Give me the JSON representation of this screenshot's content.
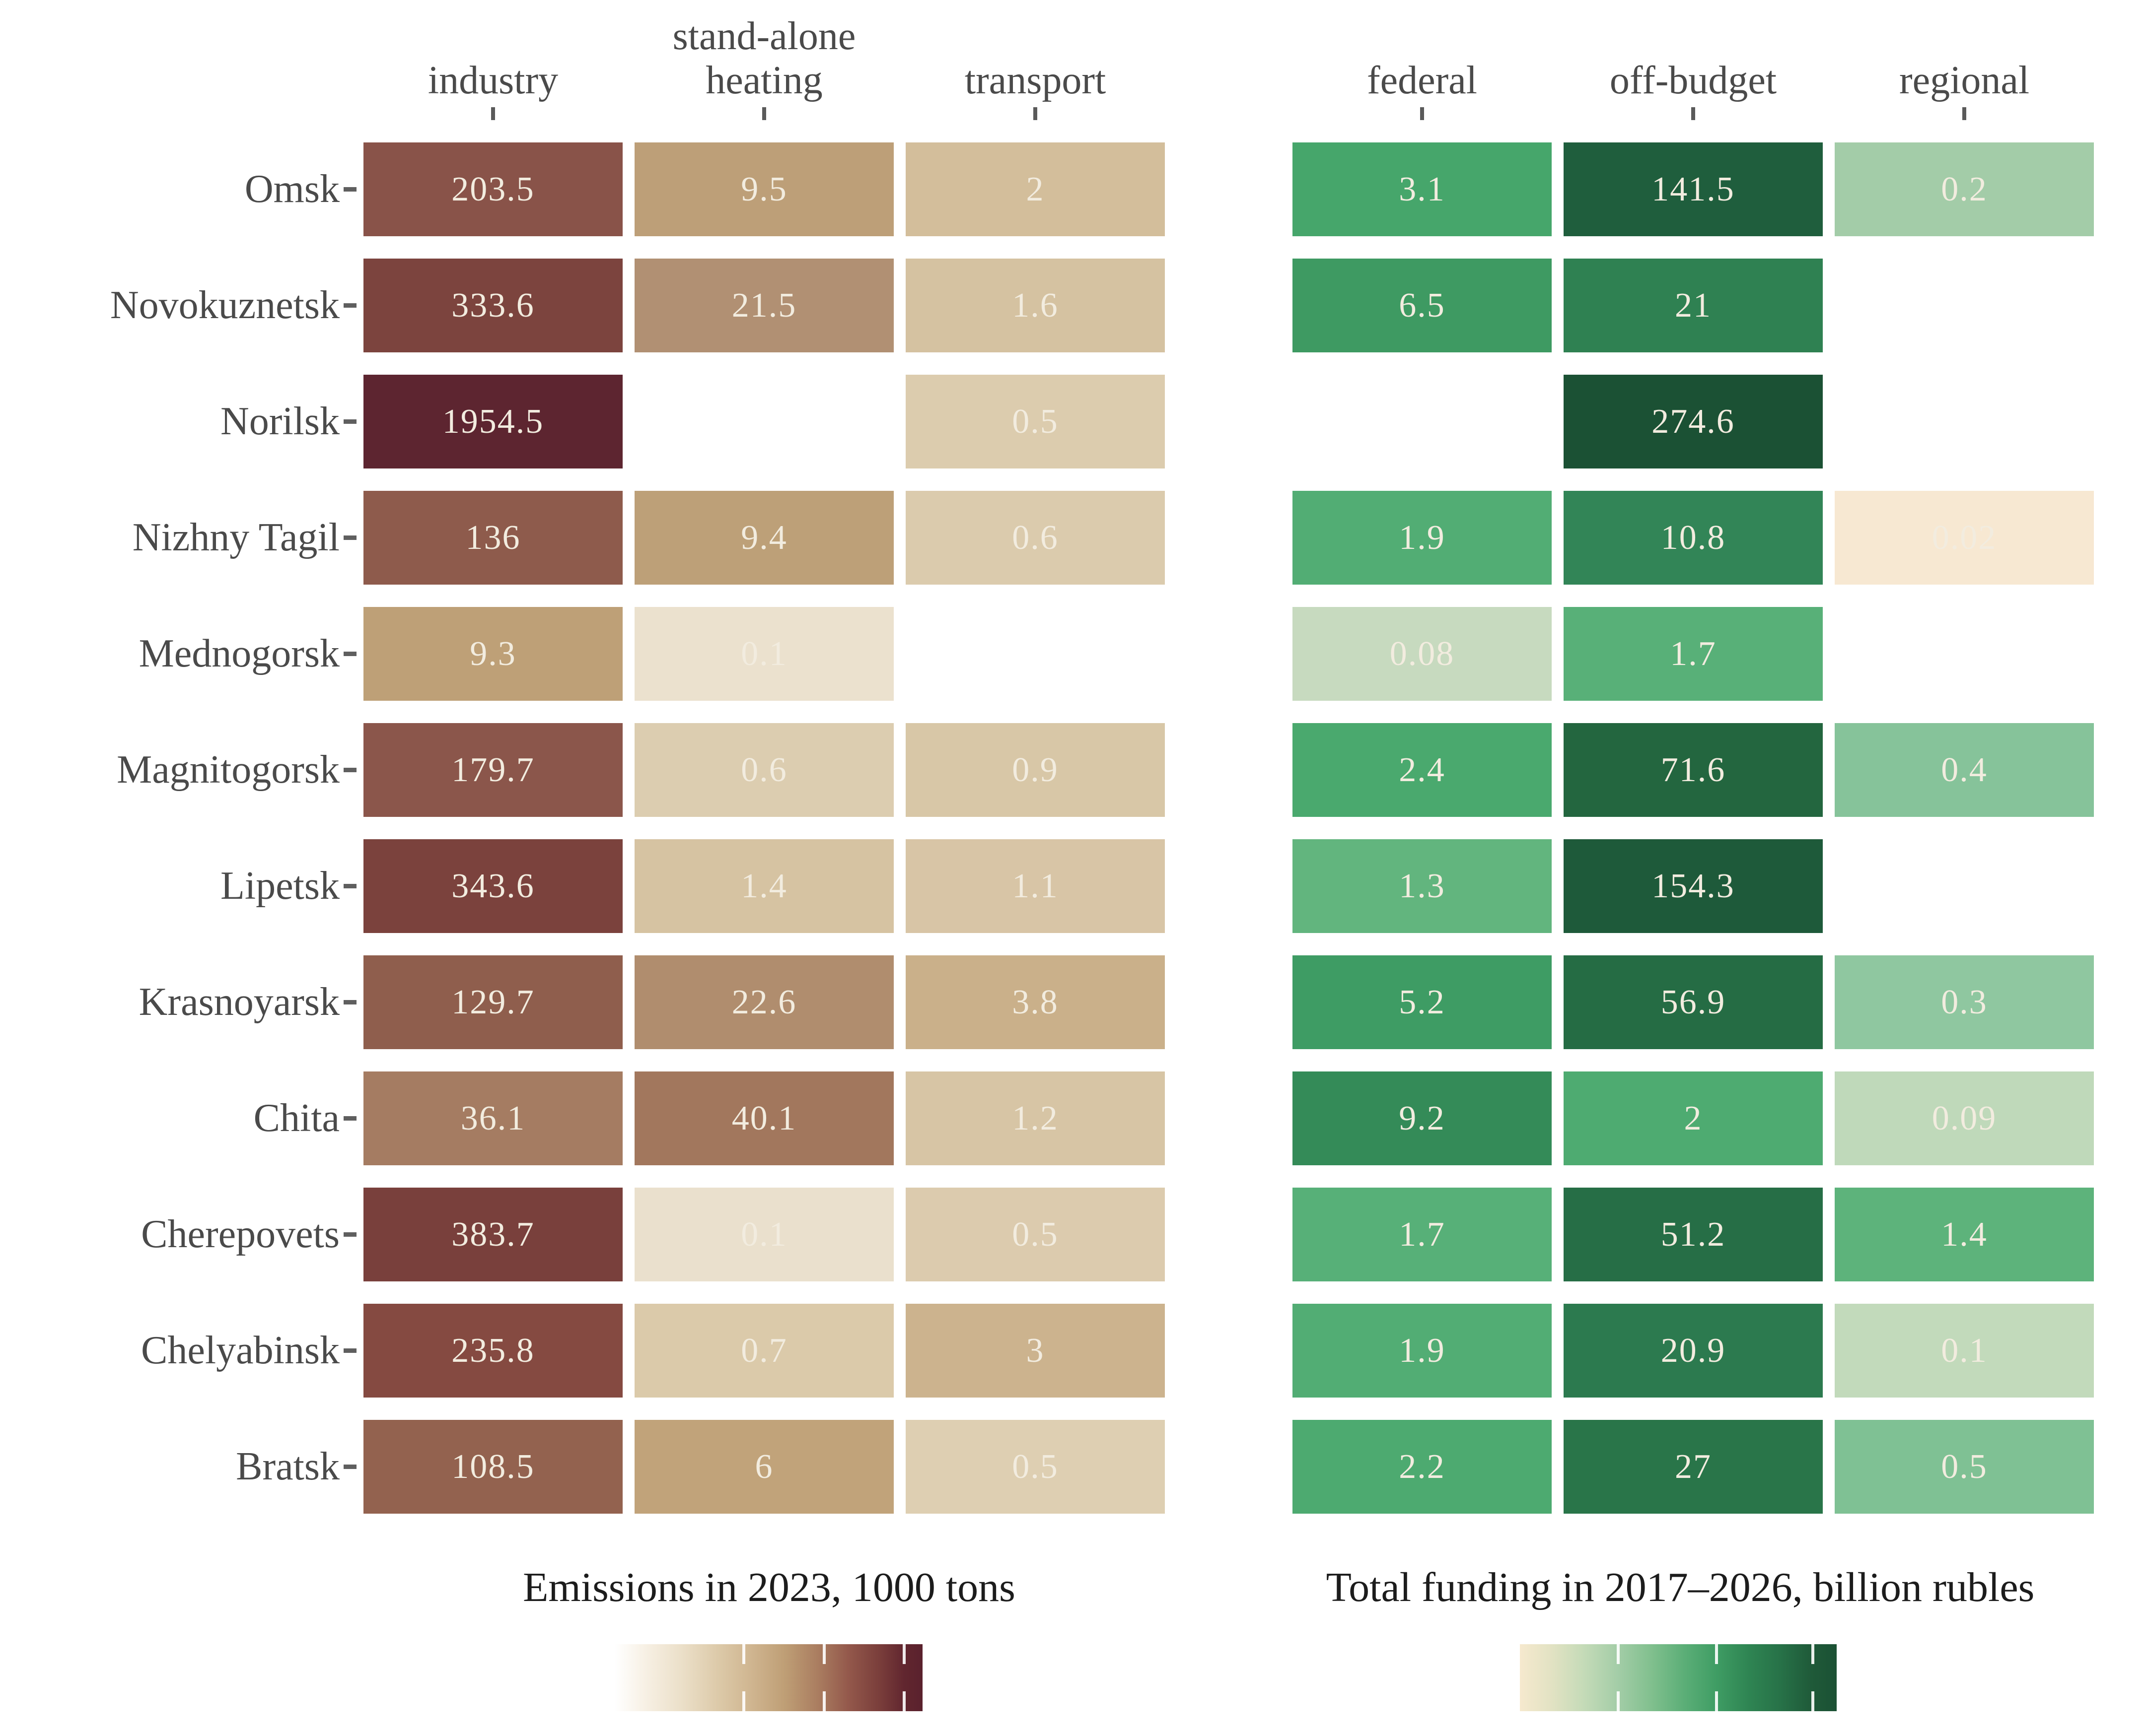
{
  "columns": {
    "emissions": [
      "industry",
      "stand-alone\nheating",
      "transport"
    ],
    "funding": [
      "federal",
      "off-budget",
      "regional"
    ]
  },
  "rows": [
    {
      "label": "Omsk",
      "emissions": [
        {
          "v": "203.5",
          "c": "#895349"
        },
        {
          "v": "9.5",
          "c": "#BD9F78"
        },
        {
          "v": "2",
          "c": "#D3BE9B"
        }
      ],
      "funding": [
        {
          "v": "3.1",
          "c": "#46A66B"
        },
        {
          "v": "141.5",
          "c": "#1F5E3D"
        },
        {
          "v": "0.2",
          "c": "#A3CCA8"
        }
      ]
    },
    {
      "label": "Novokuznetsk",
      "emissions": [
        {
          "v": "333.6",
          "c": "#7C443E"
        },
        {
          "v": "21.5",
          "c": "#B19073"
        },
        {
          "v": "1.6",
          "c": "#D5C2A1"
        }
      ],
      "funding": [
        {
          "v": "6.5",
          "c": "#3E9A62"
        },
        {
          "v": "21",
          "c": "#2F8152"
        },
        null
      ]
    },
    {
      "label": "Norilsk",
      "emissions": [
        {
          "v": "1954.5",
          "c": "#5D2530"
        },
        null,
        {
          "v": "0.5",
          "c": "#DCCCAE"
        }
      ],
      "funding": [
        null,
        {
          "v": "274.6",
          "c": "#1B5134"
        },
        null
      ]
    },
    {
      "label": "Nizhny Tagil",
      "emissions": [
        {
          "v": "136",
          "c": "#8E5B4C"
        },
        {
          "v": "9.4",
          "c": "#BDA078"
        },
        {
          "v": "0.6",
          "c": "#DBCBAD"
        }
      ],
      "funding": [
        {
          "v": "1.9",
          "c": "#52AD74"
        },
        {
          "v": "10.8",
          "c": "#328557"
        },
        {
          "v": "0.02",
          "c": "#F7E8D2"
        }
      ]
    },
    {
      "label": "Mednogorsk",
      "emissions": [
        {
          "v": "9.3",
          "c": "#BEA077"
        },
        {
          "v": "0.1",
          "c": "#EBE1CE"
        },
        null
      ],
      "funding": [
        {
          "v": "0.08",
          "c": "#C7DABF"
        },
        {
          "v": "1.7",
          "c": "#58B078"
        },
        null
      ]
    },
    {
      "label": "Magnitogorsk",
      "emissions": [
        {
          "v": "179.7",
          "c": "#8B564B"
        },
        {
          "v": "0.6",
          "c": "#DCCDB0"
        },
        {
          "v": "0.9",
          "c": "#D8C7A7"
        }
      ],
      "funding": [
        {
          "v": "2.4",
          "c": "#4AA96E"
        },
        {
          "v": "71.6",
          "c": "#23663F"
        },
        {
          "v": "0.4",
          "c": "#86C39A"
        }
      ]
    },
    {
      "label": "Lipetsk",
      "emissions": [
        {
          "v": "343.6",
          "c": "#7B423D"
        },
        {
          "v": "1.4",
          "c": "#D6C3A2"
        },
        {
          "v": "1.1",
          "c": "#D8C5A6"
        }
      ],
      "funding": [
        {
          "v": "1.3",
          "c": "#62B57E"
        },
        {
          "v": "154.3",
          "c": "#1E5A3A"
        },
        null
      ]
    },
    {
      "label": "Krasnoyarsk",
      "emissions": [
        {
          "v": "129.7",
          "c": "#8F5E4D"
        },
        {
          "v": "22.6",
          "c": "#B08D6E"
        },
        {
          "v": "3.8",
          "c": "#CAB08A"
        }
      ],
      "funding": [
        {
          "v": "5.2",
          "c": "#3E9C64"
        },
        {
          "v": "56.9",
          "c": "#256C44"
        },
        {
          "v": "0.3",
          "c": "#8FC7A0"
        }
      ]
    },
    {
      "label": "Chita",
      "emissions": [
        {
          "v": "36.1",
          "c": "#A57C62"
        },
        {
          "v": "40.1",
          "c": "#A2775D"
        },
        {
          "v": "1.2",
          "c": "#D7C5A5"
        }
      ],
      "funding": [
        {
          "v": "9.2",
          "c": "#348B58"
        },
        {
          "v": "2",
          "c": "#4EAB71"
        },
        {
          "v": "0.09",
          "c": "#BFD9BA"
        }
      ]
    },
    {
      "label": "Cherepovets",
      "emissions": [
        {
          "v": "383.7",
          "c": "#79403C"
        },
        {
          "v": "0.1",
          "c": "#EAE0CD"
        },
        {
          "v": "0.5",
          "c": "#DCCBAE"
        }
      ],
      "funding": [
        {
          "v": "1.7",
          "c": "#57B078"
        },
        {
          "v": "51.2",
          "c": "#266E46"
        },
        {
          "v": "1.4",
          "c": "#5DB37B"
        }
      ]
    },
    {
      "label": "Chelyabinsk",
      "emissions": [
        {
          "v": "235.8",
          "c": "#854A41"
        },
        {
          "v": "0.7",
          "c": "#DBCAAA"
        },
        {
          "v": "3",
          "c": "#CCB38E"
        }
      ],
      "funding": [
        {
          "v": "1.9",
          "c": "#52AD74"
        },
        {
          "v": "20.9",
          "c": "#2C7A4F"
        },
        {
          "v": "0.1",
          "c": "#C2DABB"
        }
      ]
    },
    {
      "label": "Bratsk",
      "emissions": [
        {
          "v": "108.5",
          "c": "#93624F"
        },
        {
          "v": "6",
          "c": "#C1A37A"
        },
        {
          "v": "0.5",
          "c": "#DECFB2"
        }
      ],
      "funding": [
        {
          "v": "2.2",
          "c": "#4DAA70"
        },
        {
          "v": "27",
          "c": "#297549"
        },
        {
          "v": "0.5",
          "c": "#7FC194"
        }
      ]
    }
  ],
  "legends": {
    "emissions": {
      "title": "Emissions in 2023, 1000 tons",
      "ticks": [
        42,
        68,
        94
      ],
      "stops": [
        {
          "c": "#FFFFFF",
          "p": 0
        },
        {
          "c": "#F7F0E4",
          "p": 10
        },
        {
          "c": "#EBDFC8",
          "p": 22
        },
        {
          "c": "#DCC9A8",
          "p": 34
        },
        {
          "c": "#D0B691",
          "p": 44
        },
        {
          "c": "#BF9F76",
          "p": 55
        },
        {
          "c": "#AA7D60",
          "p": 66
        },
        {
          "c": "#93584B",
          "p": 76
        },
        {
          "c": "#7A3E3B",
          "p": 86
        },
        {
          "c": "#61262F",
          "p": 94
        },
        {
          "c": "#5A212D",
          "p": 100
        }
      ]
    },
    "funding": {
      "title": "Total funding in 2017–2026, billion rubles",
      "ticks": [
        31,
        62,
        92.5
      ],
      "stops": [
        {
          "c": "#F6E9CE",
          "p": 0
        },
        {
          "c": "#E2E2C3",
          "p": 10
        },
        {
          "c": "#C5DBB8",
          "p": 20
        },
        {
          "c": "#A3CDA7",
          "p": 31
        },
        {
          "c": "#7FBF8D",
          "p": 42
        },
        {
          "c": "#5BAE77",
          "p": 52
        },
        {
          "c": "#3F9D64",
          "p": 62
        },
        {
          "c": "#2F8553",
          "p": 72
        },
        {
          "c": "#277248",
          "p": 82
        },
        {
          "c": "#1F5A39",
          "p": 92
        },
        {
          "c": "#1B5134",
          "p": 100
        }
      ]
    }
  },
  "chart_data": [
    {
      "type": "heatmap",
      "title": "Emissions in 2023, 1000 tons",
      "columns": [
        "industry",
        "stand-alone heating",
        "transport"
      ],
      "rows": [
        "Omsk",
        "Novokuznetsk",
        "Norilsk",
        "Nizhny Tagil",
        "Mednogorsk",
        "Magnitogorsk",
        "Lipetsk",
        "Krasnoyarsk",
        "Chita",
        "Cherepovets",
        "Chelyabinsk",
        "Bratsk"
      ],
      "values": [
        [
          203.5,
          9.5,
          2
        ],
        [
          333.6,
          21.5,
          1.6
        ],
        [
          1954.5,
          null,
          0.5
        ],
        [
          136,
          9.4,
          0.6
        ],
        [
          9.3,
          0.1,
          null
        ],
        [
          179.7,
          0.6,
          0.9
        ],
        [
          343.6,
          1.4,
          1.1
        ],
        [
          129.7,
          22.6,
          3.8
        ],
        [
          36.1,
          40.1,
          1.2
        ],
        [
          383.7,
          0.1,
          0.5
        ],
        [
          235.8,
          0.7,
          3
        ],
        [
          108.5,
          6,
          0.5
        ]
      ],
      "colormap": "cream-to-dark-maroon",
      "scale": "log",
      "legend_position": "bottom"
    },
    {
      "type": "heatmap",
      "title": "Total funding in 2017–2026, billion rubles",
      "columns": [
        "federal",
        "off-budget",
        "regional"
      ],
      "rows": [
        "Omsk",
        "Novokuznetsk",
        "Norilsk",
        "Nizhny Tagil",
        "Mednogorsk",
        "Magnitogorsk",
        "Lipetsk",
        "Krasnoyarsk",
        "Chita",
        "Cherepovets",
        "Chelyabinsk",
        "Bratsk"
      ],
      "values": [
        [
          3.1,
          141.5,
          0.2
        ],
        [
          6.5,
          21,
          null
        ],
        [
          null,
          274.6,
          null
        ],
        [
          1.9,
          10.8,
          0.02
        ],
        [
          0.08,
          1.7,
          null
        ],
        [
          2.4,
          71.6,
          0.4
        ],
        [
          1.3,
          154.3,
          null
        ],
        [
          5.2,
          56.9,
          0.3
        ],
        [
          9.2,
          2,
          0.09
        ],
        [
          1.7,
          51.2,
          1.4
        ],
        [
          1.9,
          20.9,
          0.1
        ],
        [
          2.2,
          27,
          0.5
        ]
      ],
      "colormap": "cream-to-dark-green",
      "scale": "log",
      "legend_position": "bottom"
    }
  ]
}
